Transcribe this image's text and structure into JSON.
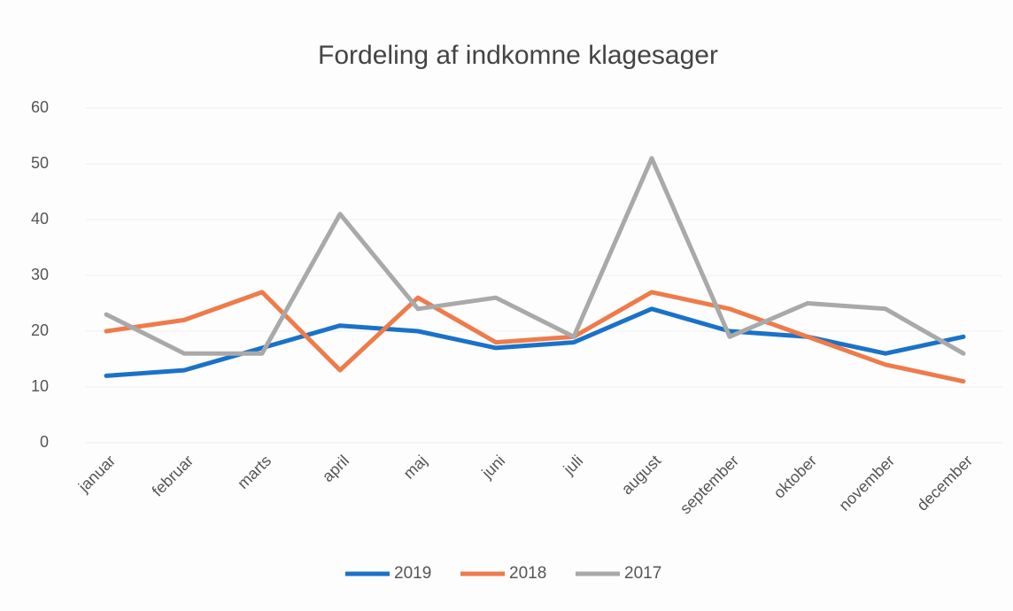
{
  "chart_data": {
    "type": "line",
    "title": "Fordeling af indkomne klagesager",
    "categories": [
      "januar",
      "februar",
      "marts",
      "april",
      "maj",
      "juni",
      "juli",
      "august",
      "september",
      "oktober",
      "november",
      "december"
    ],
    "series": [
      {
        "name": "2019",
        "color": "#1a72c8",
        "values": [
          12,
          13,
          17,
          21,
          20,
          17,
          18,
          24,
          20,
          19,
          16,
          19
        ]
      },
      {
        "name": "2018",
        "color": "#ee7b4a",
        "values": [
          20,
          22,
          27,
          13,
          26,
          18,
          19,
          27,
          24,
          19,
          14,
          11
        ]
      },
      {
        "name": "2017",
        "color": "#a9a9a9",
        "values": [
          23,
          16,
          16,
          41,
          24,
          26,
          19,
          51,
          19,
          25,
          24,
          16
        ]
      }
    ],
    "ylim": [
      0,
      60
    ],
    "yticks": [
      0,
      10,
      20,
      30,
      40,
      50,
      60
    ],
    "grid": true,
    "legend": "bottom"
  }
}
